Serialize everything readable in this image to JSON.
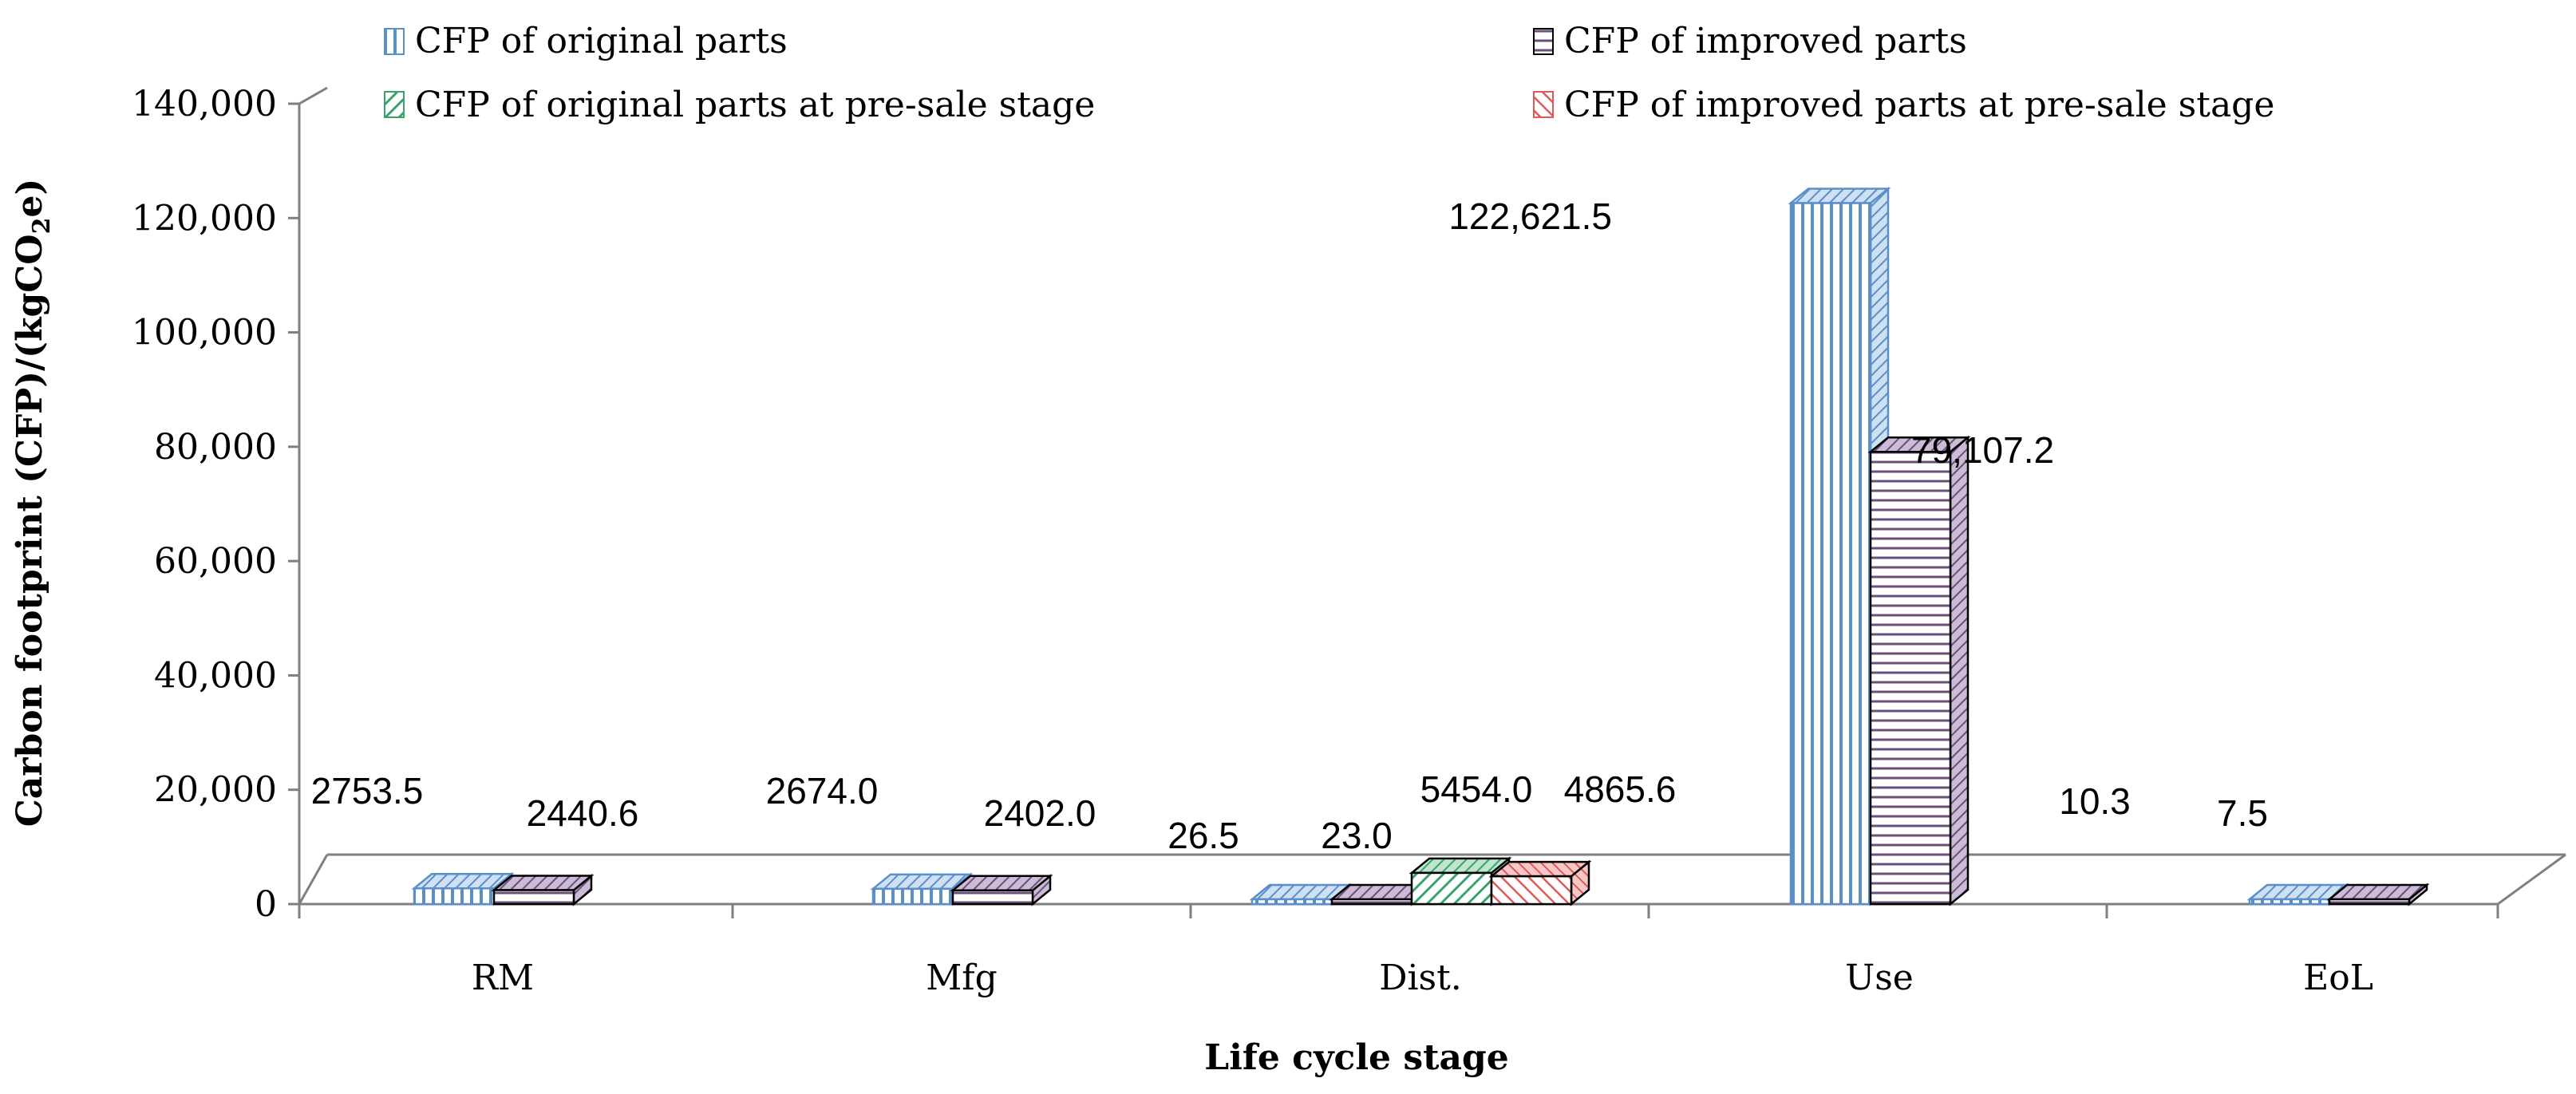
{
  "chart_data": {
    "type": "bar",
    "title": "",
    "xlabel": "Life cycle stage",
    "ylabel": "Carbon footprint (CFP)/(kgCO",
    "ylabel_sub": "2",
    "ylabel_tail": "e)",
    "ylim": [
      0,
      140000
    ],
    "yticks": [
      0,
      20000,
      40000,
      60000,
      80000,
      100000,
      120000,
      140000
    ],
    "ytick_labels": [
      "0",
      "20,000",
      "40,000",
      "60,000",
      "80,000",
      "100,000",
      "120,000",
      "140,000"
    ],
    "categories": [
      "RM",
      "Mfg",
      "Dist.",
      "Use",
      "EoL"
    ],
    "series": [
      {
        "name": "CFP of original parts",
        "color": "#5b8fc9",
        "pattern": "vertical",
        "values": [
          2753.5,
          2674.0,
          26.5,
          122621.5,
          10.3
        ],
        "labels": [
          "2753.5",
          "2674.0",
          "26.5",
          "122,621.5",
          "10.3"
        ]
      },
      {
        "name": "CFP of improved parts",
        "color": "#6b4f7a",
        "pattern": "horizontal",
        "values": [
          2440.6,
          2402.0,
          23.0,
          79107.2,
          7.5
        ],
        "labels": [
          "2440.6",
          "2402.0",
          "23.0",
          "79,107.2",
          "7.5"
        ]
      },
      {
        "name": "CFP of original parts at pre-sale stage",
        "color": "#3aa36b",
        "pattern": "diagonal",
        "values": [
          null,
          null,
          5454.0,
          null,
          null
        ],
        "labels": [
          "",
          "",
          "5454.0",
          "",
          ""
        ]
      },
      {
        "name": "CFP of improved parts at pre-sale stage",
        "color": "#e05a5a",
        "pattern": "diagonal",
        "values": [
          null,
          null,
          4865.6,
          null,
          null
        ],
        "labels": [
          "",
          "",
          "4865.6",
          "",
          ""
        ]
      }
    ],
    "legend": "top"
  }
}
